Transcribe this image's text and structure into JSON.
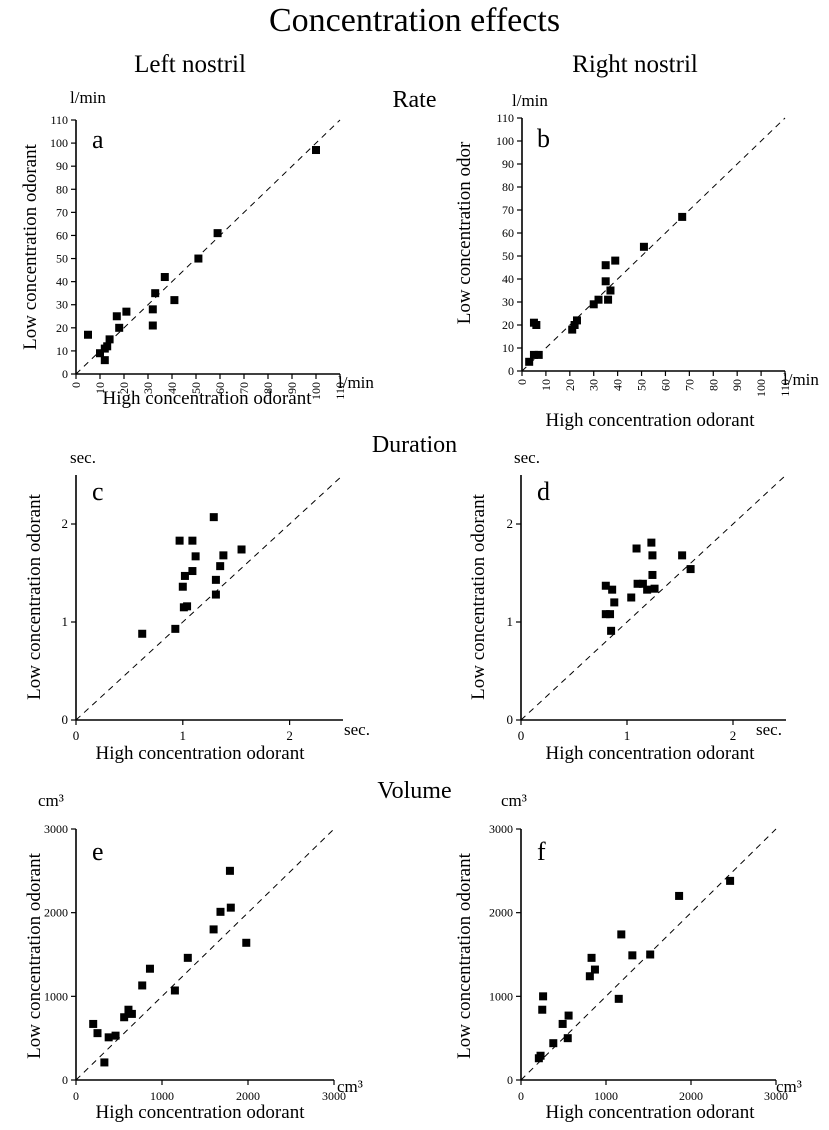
{
  "title": "Concentration effects",
  "columns": [
    "Left nostril",
    "Right nostril"
  ],
  "sections": [
    "Rate",
    "Duration",
    "Volume"
  ],
  "chart_data": [
    {
      "panel": "a",
      "type": "scatter",
      "section": "Rate",
      "column": "Left nostril",
      "xlabel": "High concentration odorant",
      "ylabel": "Low concentration odorant",
      "x_unit": "l/min",
      "y_unit": "l/min",
      "xlim": [
        0,
        110
      ],
      "ylim": [
        0,
        110
      ],
      "xticks": [
        "0",
        "10",
        "20",
        "30",
        "40",
        "50",
        "60",
        "70",
        "80",
        "90",
        "100",
        "110"
      ],
      "yticks": [
        "0",
        "10",
        "20",
        "30",
        "40",
        "50",
        "60",
        "70",
        "80",
        "90",
        "100",
        "110"
      ],
      "identity_line": true,
      "points": [
        [
          5,
          17
        ],
        [
          10,
          9
        ],
        [
          12,
          6
        ],
        [
          12,
          11
        ],
        [
          13,
          12
        ],
        [
          14,
          15
        ],
        [
          17,
          25
        ],
        [
          18,
          20
        ],
        [
          21,
          27
        ],
        [
          32,
          21
        ],
        [
          32,
          28
        ],
        [
          33,
          35
        ],
        [
          37,
          42
        ],
        [
          41,
          32
        ],
        [
          51,
          50
        ],
        [
          59,
          61
        ],
        [
          100,
          97
        ]
      ]
    },
    {
      "panel": "b",
      "type": "scatter",
      "section": "Rate",
      "column": "Right nostril",
      "xlabel": "High concentration odorant",
      "ylabel": "Low concentration odor",
      "x_unit": "l/min",
      "y_unit": "l/min",
      "xlim": [
        0,
        110
      ],
      "ylim": [
        0,
        110
      ],
      "xticks": [
        "0",
        "10",
        "20",
        "30",
        "40",
        "50",
        "60",
        "70",
        "80",
        "90",
        "100",
        "110"
      ],
      "yticks": [
        "0",
        "10",
        "20",
        "30",
        "40",
        "50",
        "60",
        "70",
        "80",
        "90",
        "100",
        "110"
      ],
      "identity_line": true,
      "points": [
        [
          3,
          4
        ],
        [
          5,
          7
        ],
        [
          5,
          21
        ],
        [
          6,
          20
        ],
        [
          7,
          7
        ],
        [
          21,
          18
        ],
        [
          22,
          20
        ],
        [
          23,
          22
        ],
        [
          30,
          29
        ],
        [
          32,
          31
        ],
        [
          35,
          39
        ],
        [
          35,
          46
        ],
        [
          36,
          31
        ],
        [
          37,
          35
        ],
        [
          39,
          48
        ],
        [
          51,
          54
        ],
        [
          67,
          67
        ]
      ]
    },
    {
      "panel": "c",
      "type": "scatter",
      "section": "Duration",
      "column": "Left nostril",
      "xlabel": "High concentration odorant",
      "ylabel": "Low concentration odorant",
      "x_unit": "sec.",
      "y_unit": "sec.",
      "xlim": [
        0,
        2.5
      ],
      "ylim": [
        0,
        2.5
      ],
      "xticks": [
        "0",
        "1",
        "2"
      ],
      "yticks": [
        "0",
        "1",
        "2"
      ],
      "identity_line": true,
      "points": [
        [
          0.62,
          0.88
        ],
        [
          0.93,
          0.93
        ],
        [
          0.97,
          1.83
        ],
        [
          1.0,
          1.36
        ],
        [
          1.01,
          1.15
        ],
        [
          1.02,
          1.47
        ],
        [
          1.04,
          1.16
        ],
        [
          1.09,
          1.52
        ],
        [
          1.09,
          1.83
        ],
        [
          1.12,
          1.67
        ],
        [
          1.29,
          2.07
        ],
        [
          1.31,
          1.28
        ],
        [
          1.31,
          1.43
        ],
        [
          1.35,
          1.57
        ],
        [
          1.38,
          1.68
        ],
        [
          1.55,
          1.74
        ]
      ]
    },
    {
      "panel": "d",
      "type": "scatter",
      "section": "Duration",
      "column": "Right nostril",
      "xlabel": "High concentration odorant",
      "ylabel": "Low concentration odorant",
      "x_unit": "sec.",
      "y_unit": "sec.",
      "xlim": [
        0,
        2.5
      ],
      "ylim": [
        0,
        2.5
      ],
      "xticks": [
        "0",
        "1",
        "2"
      ],
      "yticks": [
        "0",
        "1",
        "2"
      ],
      "identity_line": true,
      "points": [
        [
          0.8,
          1.08
        ],
        [
          0.8,
          1.37
        ],
        [
          0.84,
          1.08
        ],
        [
          0.85,
          0.91
        ],
        [
          0.86,
          1.33
        ],
        [
          0.88,
          1.2
        ],
        [
          1.04,
          1.25
        ],
        [
          1.09,
          1.75
        ],
        [
          1.1,
          1.39
        ],
        [
          1.15,
          1.39
        ],
        [
          1.19,
          1.33
        ],
        [
          1.23,
          1.81
        ],
        [
          1.24,
          1.48
        ],
        [
          1.24,
          1.68
        ],
        [
          1.26,
          1.34
        ],
        [
          1.52,
          1.68
        ],
        [
          1.6,
          1.54
        ]
      ]
    },
    {
      "panel": "e",
      "type": "scatter",
      "section": "Volume",
      "column": "Left nostril",
      "xlabel": "High concentration odorant",
      "ylabel": "Low concentration odorant",
      "x_unit": "cm³",
      "y_unit": "cm³",
      "xlim": [
        0,
        3000
      ],
      "ylim": [
        0,
        3000
      ],
      "xticks": [
        "0",
        "1000",
        "2000",
        "3000"
      ],
      "yticks": [
        "0",
        "1000",
        "2000",
        "3000"
      ],
      "identity_line": true,
      "points": [
        [
          200,
          670
        ],
        [
          250,
          560
        ],
        [
          330,
          210
        ],
        [
          380,
          510
        ],
        [
          460,
          530
        ],
        [
          560,
          750
        ],
        [
          610,
          840
        ],
        [
          650,
          790
        ],
        [
          770,
          1130
        ],
        [
          860,
          1330
        ],
        [
          1150,
          1070
        ],
        [
          1300,
          1460
        ],
        [
          1600,
          1800
        ],
        [
          1680,
          2010
        ],
        [
          1790,
          2500
        ],
        [
          1800,
          2060
        ],
        [
          1980,
          1640
        ]
      ]
    },
    {
      "panel": "f",
      "type": "scatter",
      "section": "Volume",
      "column": "Right nostril",
      "xlabel": "High concentration odorant",
      "ylabel": "Low concentration odorant",
      "x_unit": "cm³",
      "y_unit": "cm³",
      "xlim": [
        0,
        3000
      ],
      "ylim": [
        0,
        3000
      ],
      "xticks": [
        "0",
        "1000",
        "2000",
        "3000"
      ],
      "yticks": [
        "0",
        "1000",
        "2000",
        "3000"
      ],
      "identity_line": true,
      "points": [
        [
          210,
          260
        ],
        [
          230,
          290
        ],
        [
          250,
          840
        ],
        [
          260,
          1000
        ],
        [
          380,
          440
        ],
        [
          490,
          670
        ],
        [
          550,
          500
        ],
        [
          560,
          770
        ],
        [
          810,
          1240
        ],
        [
          830,
          1460
        ],
        [
          870,
          1320
        ],
        [
          1150,
          970
        ],
        [
          1180,
          1740
        ],
        [
          1310,
          1490
        ],
        [
          1520,
          1500
        ],
        [
          1860,
          2200
        ],
        [
          2460,
          2380
        ]
      ]
    }
  ]
}
